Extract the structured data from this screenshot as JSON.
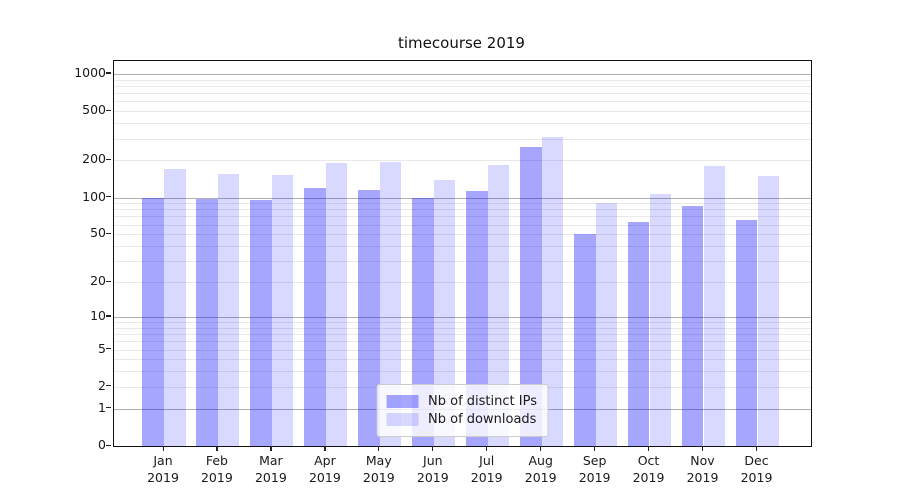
{
  "title": "timecourse 2019",
  "chart_data": {
    "type": "bar",
    "title": "timecourse 2019",
    "categories": [
      "Jan",
      "Feb",
      "Mar",
      "Apr",
      "May",
      "Jun",
      "Jul",
      "Aug",
      "Sep",
      "Oct",
      "Nov",
      "Dec"
    ],
    "category_year": "2019",
    "series": [
      {
        "name": "Nb of distinct IPs",
        "color": "rgba(0,0,255,0.35)",
        "values": [
          100,
          98,
          95,
          120,
          116,
          100,
          113,
          257,
          50,
          63,
          85,
          65
        ]
      },
      {
        "name": "Nb of downloads",
        "color": "rgba(0,0,255,0.15)",
        "values": [
          170,
          155,
          152,
          190,
          196,
          140,
          184,
          310,
          90,
          106,
          180,
          150
        ]
      }
    ],
    "xlabel": "",
    "ylabel": "",
    "yscale": "log1p",
    "ylim": [
      0,
      1273
    ],
    "ytick_labels": [
      "0",
      "1",
      "2",
      "5",
      "10",
      "20",
      "50",
      "100",
      "200",
      "500",
      "1000"
    ],
    "ytick_values": [
      0,
      1,
      2,
      5,
      10,
      20,
      50,
      100,
      200,
      500,
      1000
    ],
    "major_grid_values": [
      1,
      10,
      100,
      1000
    ],
    "grid": true,
    "legend_position": "lower center",
    "colors": {
      "major_grid": "#b0b0b0",
      "minor_grid": "#e9e9e9",
      "spine": "#111111",
      "legend_border": "#cccccc",
      "legend_background": "rgba(255,255,255,0.8)"
    }
  }
}
